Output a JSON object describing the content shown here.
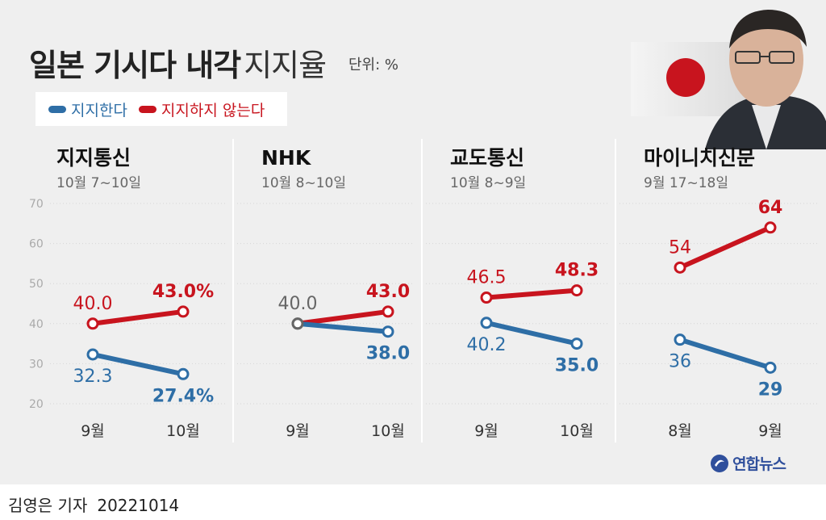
{
  "header": {
    "title_bold": "일본 기시다 내각",
    "title_light": "지지율",
    "unit": "단위: %"
  },
  "legend": [
    {
      "label": "지지한다",
      "color": "#2e6ea6"
    },
    {
      "label": "지지하지 않는다",
      "color": "#c8141e"
    }
  ],
  "colors": {
    "support": "#2e6ea6",
    "oppose": "#c8141e",
    "neutral": "#666666"
  },
  "chart_data": [
    {
      "type": "line",
      "title": "지지통신",
      "subtitle": "10월 7~10일",
      "categories": [
        "9월",
        "10월"
      ],
      "ylim": [
        20,
        70
      ],
      "yticks": [
        20,
        30,
        40,
        50,
        60,
        70
      ],
      "series": [
        {
          "name": "지지하지 않는다",
          "values": [
            40.0,
            43.0
          ],
          "labels": [
            "40.0",
            "43.0%"
          ]
        },
        {
          "name": "지지한다",
          "values": [
            32.3,
            27.4
          ],
          "labels": [
            "32.3",
            "27.4%"
          ]
        }
      ]
    },
    {
      "type": "line",
      "title": "NHK",
      "subtitle": "10월 8~10일",
      "categories": [
        "9월",
        "10월"
      ],
      "ylim": [
        20,
        70
      ],
      "shared_start_label": "40.0",
      "series": [
        {
          "name": "지지하지 않는다",
          "values": [
            40.0,
            43.0
          ],
          "labels": [
            "",
            "43.0"
          ]
        },
        {
          "name": "지지한다",
          "values": [
            40.0,
            38.0
          ],
          "labels": [
            "",
            "38.0"
          ]
        }
      ]
    },
    {
      "type": "line",
      "title": "교도통신",
      "subtitle": "10월 8~9일",
      "categories": [
        "9월",
        "10월"
      ],
      "ylim": [
        20,
        70
      ],
      "series": [
        {
          "name": "지지하지 않는다",
          "values": [
            46.5,
            48.3
          ],
          "labels": [
            "46.5",
            "48.3"
          ]
        },
        {
          "name": "지지한다",
          "values": [
            40.2,
            35.0
          ],
          "labels": [
            "40.2",
            "35.0"
          ]
        }
      ]
    },
    {
      "type": "line",
      "title": "마이니치신문",
      "subtitle": "9월 17~18일",
      "categories": [
        "8월",
        "9월"
      ],
      "ylim": [
        20,
        70
      ],
      "series": [
        {
          "name": "지지하지 않는다",
          "values": [
            54,
            64
          ],
          "labels": [
            "54",
            "64"
          ]
        },
        {
          "name": "지지한다",
          "values": [
            36,
            29
          ],
          "labels": [
            "36",
            "29"
          ]
        }
      ]
    }
  ],
  "logo": {
    "text": "연합뉴스"
  },
  "credit": {
    "author": "김영은 기자",
    "date": "20221014"
  }
}
